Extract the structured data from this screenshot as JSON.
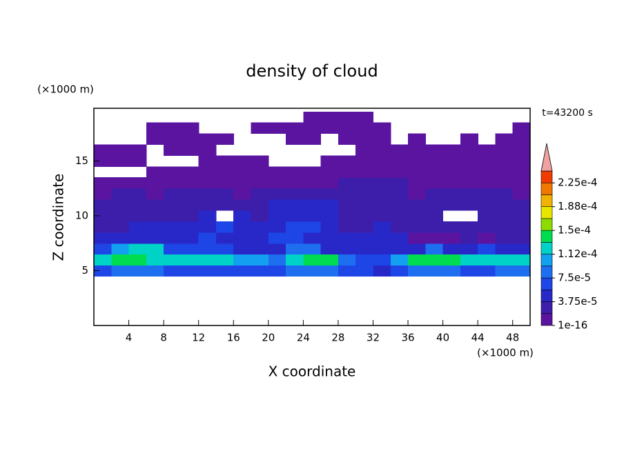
{
  "chart_data": {
    "type": "contour",
    "title": "density of cloud",
    "x_label": "X coordinate",
    "y_label": "Z coordinate",
    "x_unit": "(×1000 m)",
    "y_unit": "(×1000 m)",
    "time_label": "t=43200 s",
    "xlim": [
      0,
      50
    ],
    "ylim": [
      0,
      19.8
    ],
    "xticks": [
      4,
      8,
      12,
      16,
      20,
      24,
      28,
      32,
      36,
      40,
      44,
      48
    ],
    "yticks": [
      5,
      10,
      15
    ],
    "x": [
      1,
      3,
      5,
      7,
      9,
      11,
      13,
      15,
      17,
      19,
      21,
      23,
      25,
      27,
      29,
      31,
      33,
      35,
      37,
      39,
      41,
      43,
      45,
      47,
      49
    ],
    "y": [
      5,
      6,
      7,
      8,
      9,
      10,
      11,
      12,
      13,
      14,
      15,
      16,
      17,
      18,
      19
    ],
    "z": [
      [
        6.5e-05,
        8.5e-05,
        8.5e-05,
        8.5e-05,
        6.5e-05,
        6.5e-05,
        6.5e-05,
        6.5e-05,
        6.5e-05,
        6.5e-05,
        6.5e-05,
        8.5e-05,
        8.5e-05,
        8.5e-05,
        6.5e-05,
        6.5e-05,
        4.5e-05,
        6.5e-05,
        8.5e-05,
        8.5e-05,
        8.5e-05,
        6.5e-05,
        6.5e-05,
        8.5e-05,
        8.5e-05
      ],
      [
        0.00012,
        0.00014,
        0.00014,
        0.00012,
        0.00012,
        0.00012,
        0.00012,
        0.00012,
        0.000105,
        0.000105,
        8.5e-05,
        0.00012,
        0.00014,
        0.00014,
        8.5e-05,
        6.5e-05,
        6.5e-05,
        0.000105,
        0.00014,
        0.00014,
        0.00014,
        0.00012,
        0.00012,
        0.00012,
        0.00012
      ],
      [
        6.5e-05,
        0.000105,
        0.00012,
        0.00012,
        6.5e-05,
        6.5e-05,
        6.5e-05,
        6.5e-05,
        4.5e-05,
        4.5e-05,
        4.5e-05,
        8.5e-05,
        8.5e-05,
        4.5e-05,
        4.5e-05,
        4.5e-05,
        4.5e-05,
        4.5e-05,
        4.5e-05,
        8.5e-05,
        4.5e-05,
        4.5e-05,
        6.5e-05,
        4.5e-05,
        4.5e-05
      ],
      [
        4.5e-05,
        4.5e-05,
        4.5e-05,
        4.5e-05,
        4.5e-05,
        4.5e-05,
        6.5e-05,
        4.5e-05,
        4.5e-05,
        4.5e-05,
        6.5e-05,
        6.5e-05,
        4.5e-05,
        4.5e-05,
        4.5e-05,
        4.5e-05,
        4.5e-05,
        4.5e-05,
        1e-05,
        1e-05,
        1e-05,
        2.5e-05,
        1e-05,
        2.5e-05,
        2.5e-05
      ],
      [
        2.5e-05,
        2.5e-05,
        4.5e-05,
        4.5e-05,
        4.5e-05,
        4.5e-05,
        4.5e-05,
        6.5e-05,
        4.5e-05,
        4.5e-05,
        4.5e-05,
        6.5e-05,
        6.5e-05,
        4.5e-05,
        2.5e-05,
        2.5e-05,
        4.5e-05,
        2.5e-05,
        2.5e-05,
        2.5e-05,
        2.5e-05,
        2.5e-05,
        2.5e-05,
        2.5e-05,
        2.5e-05
      ],
      [
        2.5e-05,
        2.5e-05,
        2.5e-05,
        2.5e-05,
        2.5e-05,
        2.5e-05,
        4.5e-05,
        null,
        4.5e-05,
        2.5e-05,
        4.5e-05,
        4.5e-05,
        4.5e-05,
        4.5e-05,
        2.5e-05,
        2.5e-05,
        2.5e-05,
        2.5e-05,
        2.5e-05,
        2.5e-05,
        null,
        null,
        2.5e-05,
        2.5e-05,
        2.5e-05
      ],
      [
        2.5e-05,
        2.5e-05,
        2.5e-05,
        2.5e-05,
        2.5e-05,
        2.5e-05,
        2.5e-05,
        2.5e-05,
        2.5e-05,
        2.5e-05,
        4.5e-05,
        4.5e-05,
        4.5e-05,
        4.5e-05,
        2.5e-05,
        2.5e-05,
        2.5e-05,
        2.5e-05,
        2.5e-05,
        2.5e-05,
        2.5e-05,
        2.5e-05,
        2.5e-05,
        2.5e-05,
        2.5e-05
      ],
      [
        1e-05,
        2.5e-05,
        2.5e-05,
        1e-05,
        2.5e-05,
        2.5e-05,
        2.5e-05,
        2.5e-05,
        1e-05,
        2.5e-05,
        2.5e-05,
        2.5e-05,
        2.5e-05,
        2.5e-05,
        2.5e-05,
        2.5e-05,
        2.5e-05,
        2.5e-05,
        1e-05,
        2.5e-05,
        2.5e-05,
        2.5e-05,
        2.5e-05,
        2.5e-05,
        1e-05
      ],
      [
        1e-05,
        1e-05,
        1e-05,
        1e-05,
        1e-05,
        1e-05,
        1e-05,
        1e-05,
        1e-05,
        1e-05,
        1e-05,
        1e-05,
        1e-05,
        1e-05,
        2.5e-05,
        2.5e-05,
        2.5e-05,
        2.5e-05,
        1e-05,
        1e-05,
        1e-05,
        1e-05,
        1e-05,
        1e-05,
        1e-05
      ],
      [
        null,
        null,
        null,
        1e-05,
        1e-05,
        1e-05,
        1e-05,
        1e-05,
        1e-05,
        1e-05,
        1e-05,
        1e-05,
        1e-05,
        1e-05,
        1e-05,
        1e-05,
        1e-05,
        1e-05,
        1e-05,
        1e-05,
        1e-05,
        1e-05,
        1e-05,
        1e-05,
        1e-05
      ],
      [
        1e-05,
        1e-05,
        1e-05,
        null,
        null,
        null,
        1e-05,
        1e-05,
        1e-05,
        1e-05,
        null,
        null,
        null,
        1e-05,
        1e-05,
        1e-05,
        1e-05,
        1e-05,
        1e-05,
        1e-05,
        1e-05,
        1e-05,
        1e-05,
        1e-05,
        1e-05
      ],
      [
        1e-05,
        1e-05,
        1e-05,
        null,
        1e-05,
        1e-05,
        1e-05,
        null,
        null,
        null,
        null,
        null,
        null,
        null,
        null,
        1e-05,
        1e-05,
        1e-05,
        1e-05,
        1e-05,
        1e-05,
        1e-05,
        1e-05,
        1e-05,
        1e-05
      ],
      [
        null,
        null,
        null,
        1e-05,
        1e-05,
        1e-05,
        1e-05,
        1e-05,
        null,
        null,
        null,
        1e-05,
        1e-05,
        null,
        1e-05,
        1e-05,
        1e-05,
        null,
        1e-05,
        null,
        null,
        1e-05,
        null,
        1e-05,
        1e-05
      ],
      [
        null,
        null,
        null,
        1e-05,
        1e-05,
        1e-05,
        null,
        null,
        null,
        1e-05,
        1e-05,
        1e-05,
        1e-05,
        1e-05,
        1e-05,
        1e-05,
        1e-05,
        null,
        null,
        null,
        null,
        null,
        null,
        null,
        1e-05
      ],
      [
        null,
        null,
        null,
        null,
        null,
        null,
        null,
        null,
        null,
        null,
        null,
        null,
        1e-05,
        1e-05,
        1e-05,
        1e-05,
        null,
        null,
        null,
        null,
        null,
        null,
        null,
        null,
        null
      ]
    ],
    "colorbar": {
      "levels": [
        1e-16,
        1.875e-05,
        3.75e-05,
        5.625e-05,
        7.5e-05,
        9.375e-05,
        0.0001125,
        0.00013125,
        0.00015,
        0.00016875,
        0.0001875,
        0.00020625,
        0.000225,
        0.00024375
      ],
      "colors": [
        "#5a14a0",
        "#3c1eaa",
        "#2828c8",
        "#1e46e6",
        "#1e6ef0",
        "#14a0f0",
        "#00d2c8",
        "#00dc50",
        "#8cdc00",
        "#e6e600",
        "#f0b400",
        "#f07800",
        "#f03c00"
      ],
      "extend_color": "#f0a0a0",
      "ticks": [
        {
          "value": 1e-16,
          "label": "1e-16"
        },
        {
          "value": 3.75e-05,
          "label": "3.75e-5"
        },
        {
          "value": 7.5e-05,
          "label": "7.5e-5"
        },
        {
          "value": 0.0001125,
          "label": "1.12e-4"
        },
        {
          "value": 0.00015,
          "label": "1.5e-4"
        },
        {
          "value": 0.0001875,
          "label": "1.88e-4"
        },
        {
          "value": 0.000225,
          "label": "2.25e-4"
        }
      ]
    }
  }
}
